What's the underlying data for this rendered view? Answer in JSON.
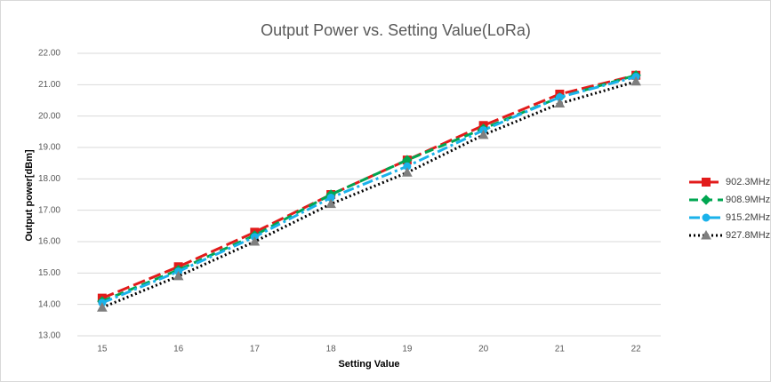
{
  "chart_data": {
    "type": "line",
    "title": "Output Power vs. Setting Value(LoRa)",
    "x_label": "Setting Value",
    "y_label": "Output power[dBm]",
    "categories": [
      "15",
      "16",
      "17",
      "18",
      "19",
      "20",
      "21",
      "22"
    ],
    "series": [
      {
        "name": "902.3MHz",
        "color": "#e21b1b",
        "dash": "14 5",
        "marker": "square",
        "values": [
          14.2,
          15.2,
          16.3,
          17.5,
          18.6,
          19.7,
          20.7,
          21.3
        ]
      },
      {
        "name": "908.9MHz",
        "color": "#00a651",
        "dash": "10 6",
        "marker": "diamond",
        "values": [
          14.1,
          15.1,
          16.2,
          17.5,
          18.6,
          19.6,
          20.6,
          21.3
        ]
      },
      {
        "name": "915.2MHz",
        "color": "#1ab2ea",
        "dash": "12 4 3 4",
        "marker": "circle",
        "values": [
          14.05,
          15.05,
          16.15,
          17.4,
          18.4,
          19.55,
          20.6,
          21.25
        ]
      },
      {
        "name": "927.8MHz",
        "color": "#000000",
        "dash": "2 3",
        "marker": "triangle",
        "values": [
          13.9,
          14.9,
          16.0,
          17.2,
          18.2,
          19.4,
          20.4,
          21.1
        ]
      }
    ],
    "ylim": [
      13,
      22
    ],
    "yticks": [
      {
        "value": 13,
        "label": "13.00"
      },
      {
        "value": 14,
        "label": "14.00"
      },
      {
        "value": 15,
        "label": "15.00"
      },
      {
        "value": 16,
        "label": "16.00"
      },
      {
        "value": 17,
        "label": "17.00"
      },
      {
        "value": 18,
        "label": "18.00"
      },
      {
        "value": 19,
        "label": "19.00"
      },
      {
        "value": 20,
        "label": "20.00"
      },
      {
        "value": 21,
        "label": "21.00"
      },
      {
        "value": 22,
        "label": "22.00"
      }
    ],
    "grid": true,
    "legend": "right"
  }
}
